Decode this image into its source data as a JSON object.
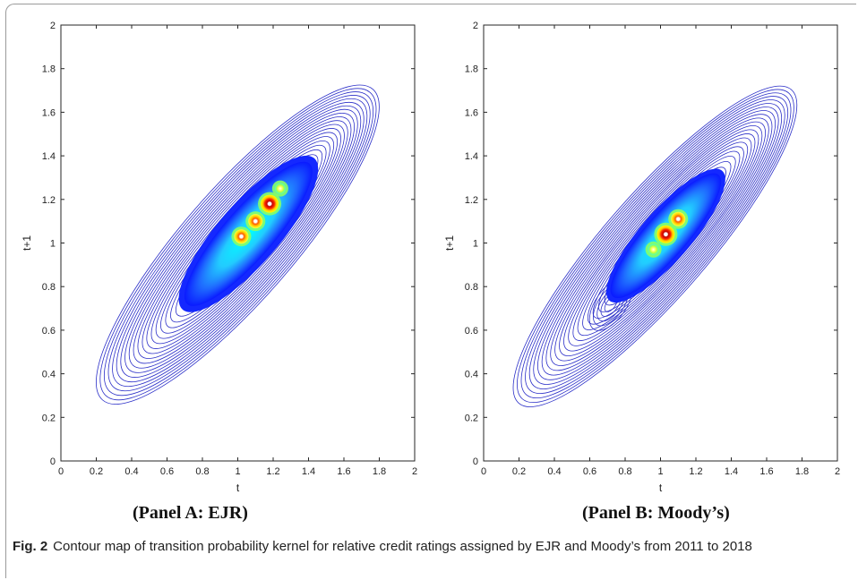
{
  "figure": {
    "fig_label": "Fig. 2",
    "caption": "Contour map of transition probability kernel for relative credit ratings assigned by EJR and Moody’s from 2011 to 2018"
  },
  "panels": [
    {
      "label": "(Panel A: EJR)"
    },
    {
      "label": "(Panel B: Moody’s)"
    }
  ],
  "chart_data": [
    {
      "type": "contour",
      "title": "",
      "panel_label": "(Panel A: EJR)",
      "xlabel": "t",
      "ylabel": "t+1",
      "xlim": [
        0,
        2
      ],
      "ylim": [
        0,
        2
      ],
      "xticks": [
        "0",
        "0.2",
        "0.4",
        "0.6",
        "0.8",
        "1",
        "1.2",
        "1.4",
        "1.6",
        "1.8",
        "2"
      ],
      "yticks": [
        "0",
        "0.2",
        "0.4",
        "0.6",
        "0.8",
        "1",
        "1.2",
        "1.4",
        "1.6",
        "1.8",
        "2"
      ],
      "grid": false,
      "density_center": [
        1.05,
        1.05
      ],
      "density_major_axis": [
        [
          0.85,
          0.85
        ],
        [
          1.35,
          1.35
        ]
      ],
      "outer_contour_extent": {
        "t": [
          0.38,
          1.6
        ],
        "t_plus_1": [
          0.33,
          1.6
        ]
      },
      "peaks": [
        {
          "t": 1.18,
          "t_plus_1": 1.18,
          "level": "highest"
        },
        {
          "t": 1.1,
          "t_plus_1": 1.1,
          "level": "high"
        },
        {
          "t": 1.02,
          "t_plus_1": 1.03,
          "level": "high"
        },
        {
          "t": 1.24,
          "t_plus_1": 1.25,
          "level": "medium"
        }
      ]
    },
    {
      "type": "contour",
      "title": "",
      "panel_label": "(Panel B: Moody’s)",
      "xlabel": "t",
      "ylabel": "t+1",
      "xlim": [
        0,
        2
      ],
      "ylim": [
        0,
        2
      ],
      "xticks": [
        "0",
        "0.2",
        "0.4",
        "0.6",
        "0.8",
        "1",
        "1.2",
        "1.4",
        "1.6",
        "1.8",
        "2"
      ],
      "yticks": [
        "0",
        "0.2",
        "0.4",
        "0.6",
        "0.8",
        "1",
        "1.2",
        "1.4",
        "1.6",
        "1.8",
        "2"
      ],
      "grid": false,
      "density_center": [
        1.05,
        1.05
      ],
      "density_major_axis": [
        [
          0.9,
          0.92
        ],
        [
          1.3,
          1.3
        ]
      ],
      "outer_contour_extent": {
        "t": [
          0.3,
          1.58
        ],
        "t_plus_1": [
          0.28,
          1.55
        ]
      },
      "secondary_mode": {
        "t": 0.72,
        "t_plus_1": 0.72
      },
      "peaks": [
        {
          "t": 1.03,
          "t_plus_1": 1.04,
          "level": "highest"
        },
        {
          "t": 1.1,
          "t_plus_1": 1.11,
          "level": "high"
        },
        {
          "t": 0.96,
          "t_plus_1": 0.97,
          "level": "medium"
        }
      ]
    }
  ]
}
